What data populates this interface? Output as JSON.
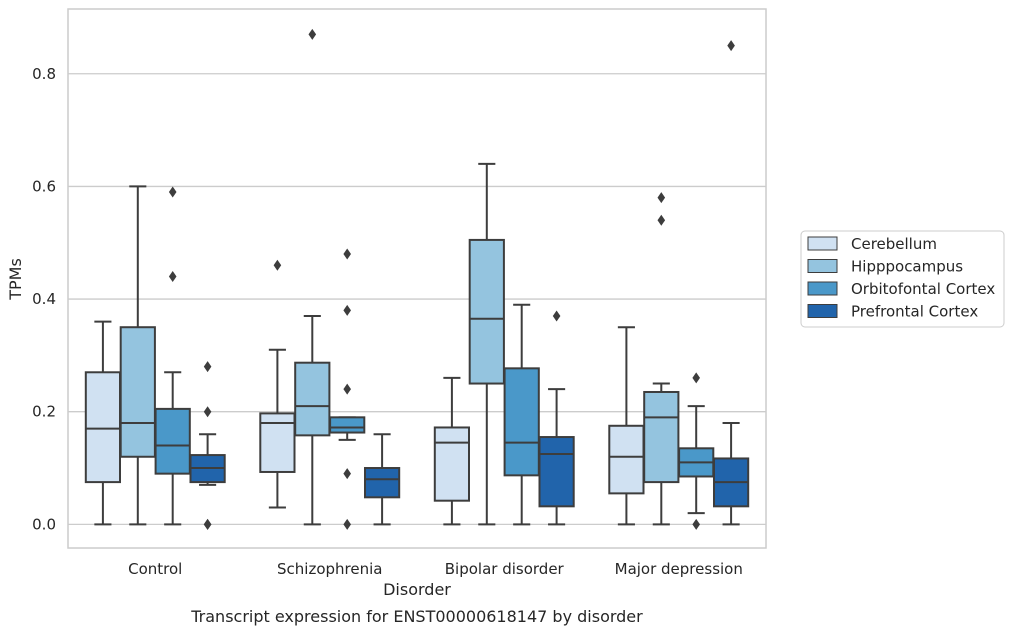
{
  "chart_data": {
    "type": "box",
    "xlabel": "Disorder",
    "ylabel": "TPMs",
    "caption": "Transcript expression for ENST00000618147 by disorder",
    "ylim": [
      -0.042,
      0.915
    ],
    "yticks": [
      0.0,
      0.2,
      0.4,
      0.6,
      0.8
    ],
    "ytick_labels": [
      "0.0",
      "0.2",
      "0.4",
      "0.6",
      "0.8"
    ],
    "grid": "horizontal",
    "legend_position": "right",
    "categories": [
      "Control",
      "Schizophrenia",
      "Bipolar disorder",
      "Major depression"
    ],
    "series": [
      {
        "name": "Cerebellum",
        "color": "#d0e1f2",
        "boxes": [
          {
            "min": 0.0,
            "q1": 0.075,
            "median": 0.17,
            "q3": 0.27,
            "max": 0.36,
            "outliers": []
          },
          {
            "min": 0.03,
            "q1": 0.093,
            "median": 0.18,
            "q3": 0.197,
            "max": 0.31,
            "outliers": [
              0.46
            ]
          },
          {
            "min": 0.0,
            "q1": 0.042,
            "median": 0.145,
            "q3": 0.172,
            "max": 0.26,
            "outliers": []
          },
          {
            "min": 0.0,
            "q1": 0.055,
            "median": 0.12,
            "q3": 0.175,
            "max": 0.35,
            "outliers": []
          }
        ]
      },
      {
        "name": "Hipppocampus",
        "color": "#94c4df",
        "boxes": [
          {
            "min": 0.0,
            "q1": 0.12,
            "median": 0.18,
            "q3": 0.35,
            "max": 0.6,
            "outliers": []
          },
          {
            "min": 0.0,
            "q1": 0.158,
            "median": 0.21,
            "q3": 0.287,
            "max": 0.37,
            "outliers": [
              0.87
            ]
          },
          {
            "min": 0.0,
            "q1": 0.25,
            "median": 0.365,
            "q3": 0.505,
            "max": 0.64,
            "outliers": []
          },
          {
            "min": 0.0,
            "q1": 0.075,
            "median": 0.19,
            "q3": 0.235,
            "max": 0.25,
            "outliers": [
              0.58,
              0.54
            ]
          }
        ]
      },
      {
        "name": "Orbitofontal Cortex",
        "color": "#4a98c9",
        "boxes": [
          {
            "min": 0.0,
            "q1": 0.09,
            "median": 0.14,
            "q3": 0.205,
            "max": 0.27,
            "outliers": [
              0.59,
              0.44
            ]
          },
          {
            "min": 0.15,
            "q1": 0.163,
            "median": 0.172,
            "q3": 0.19,
            "max": 0.19,
            "outliers": [
              0.48,
              0.38,
              0.24,
              0.09,
              0.0
            ]
          },
          {
            "min": 0.0,
            "q1": 0.087,
            "median": 0.145,
            "q3": 0.277,
            "max": 0.39,
            "outliers": []
          },
          {
            "min": 0.02,
            "q1": 0.085,
            "median": 0.11,
            "q3": 0.135,
            "max": 0.21,
            "outliers": [
              0.26,
              0.0
            ]
          }
        ]
      },
      {
        "name": "Prefrontal Cortex",
        "color": "#2164ab",
        "boxes": [
          {
            "min": 0.07,
            "q1": 0.075,
            "median": 0.1,
            "q3": 0.123,
            "max": 0.16,
            "outliers": [
              0.28,
              0.2,
              0.0,
              0.0
            ]
          },
          {
            "min": 0.0,
            "q1": 0.048,
            "median": 0.08,
            "q3": 0.1,
            "max": 0.16,
            "outliers": []
          },
          {
            "min": 0.0,
            "q1": 0.032,
            "median": 0.125,
            "q3": 0.155,
            "max": 0.24,
            "outliers": [
              0.37
            ]
          },
          {
            "min": 0.0,
            "q1": 0.032,
            "median": 0.075,
            "q3": 0.117,
            "max": 0.18,
            "outliers": [
              0.85
            ]
          }
        ]
      }
    ]
  }
}
